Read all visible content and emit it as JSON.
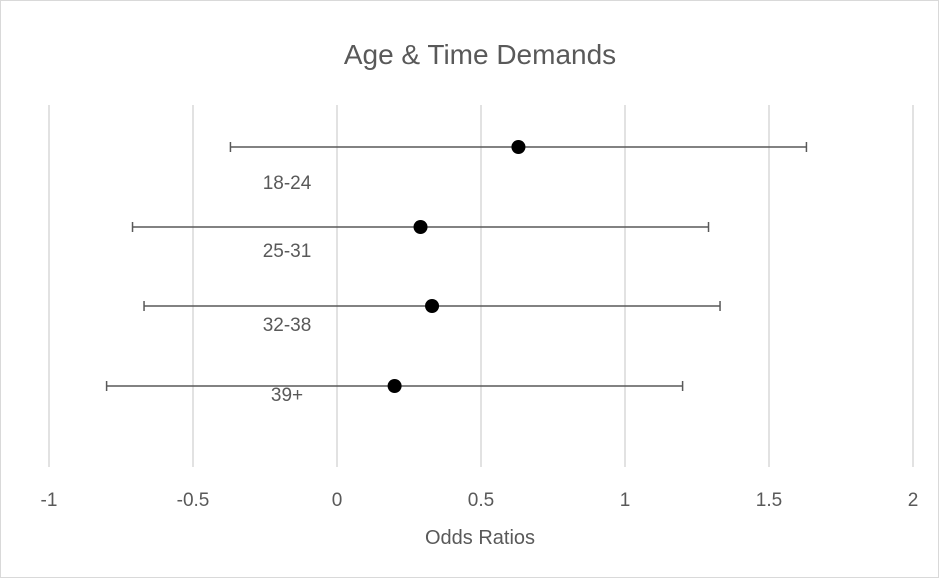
{
  "chart_data": {
    "type": "scatter",
    "title": "Age & Time Demands",
    "xlabel": "Odds Ratios",
    "ylabel": "",
    "xlim": [
      -1,
      2
    ],
    "x_ticks": [
      -1,
      -0.5,
      0,
      0.5,
      1,
      1.5,
      2
    ],
    "x_tick_labels": [
      "-1",
      "-0.5",
      "0",
      "0.5",
      "1",
      "1.5",
      "2"
    ],
    "grid": true,
    "legend": "none",
    "categories": [
      "18-24",
      "25-31",
      "32-38",
      "39+"
    ],
    "points": [
      {
        "label": "18-24",
        "value": 0.63,
        "lower": -0.37,
        "upper": 1.63
      },
      {
        "label": "25-31",
        "value": 0.29,
        "lower": -0.71,
        "upper": 1.29
      },
      {
        "label": "32-38",
        "value": 0.33,
        "lower": -0.67,
        "upper": 1.33
      },
      {
        "label": "39+",
        "value": 0.2,
        "lower": -0.8,
        "upper": 1.2
      }
    ],
    "colors": {
      "marker": "#000000",
      "error_bar": "#595959",
      "grid": "#d9d9d9",
      "text": "#595959"
    }
  }
}
